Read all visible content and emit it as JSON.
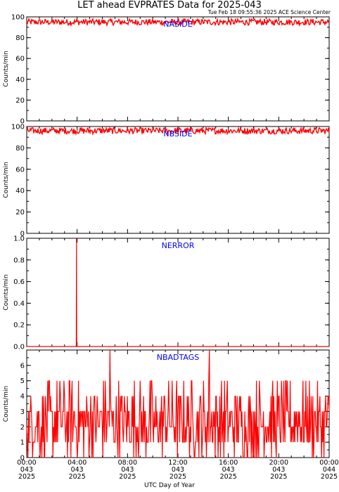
{
  "page": {
    "title": "LET ahead EVPRATES Data for 2025-043",
    "subtitle": "Tue Feb 18 09:55:36 2025 ACE Science Center",
    "xlabel": "UTC Day of Year"
  },
  "colors": {
    "series": "#ff0000",
    "label": "#0000ff",
    "axis": "#000000"
  },
  "chart_data": [
    {
      "type": "line",
      "name": "NASIDE",
      "ylabel": "Counts/min",
      "ylim": [
        0,
        100
      ],
      "yticks": [
        0,
        20,
        40,
        60,
        80,
        100
      ],
      "xlim": [
        0,
        24
      ],
      "series": [
        {
          "name": "NASIDE",
          "pattern": "noise",
          "mean": 95,
          "spread": 3,
          "x": [
            0,
            4,
            8,
            12,
            16,
            20,
            24
          ],
          "values": [
            95,
            96,
            95,
            95,
            96,
            95,
            95
          ]
        }
      ]
    },
    {
      "type": "line",
      "name": "NBSIDE",
      "ylabel": "Counts/min",
      "ylim": [
        0,
        100
      ],
      "yticks": [
        0,
        20,
        40,
        60,
        80,
        100
      ],
      "xlim": [
        0,
        24
      ],
      "series": [
        {
          "name": "NBSIDE",
          "pattern": "noise",
          "mean": 96,
          "spread": 3,
          "x": [
            0,
            4,
            8,
            12,
            16,
            20,
            24
          ],
          "values": [
            96,
            96,
            95,
            96,
            96,
            96,
            96
          ]
        }
      ]
    },
    {
      "type": "line",
      "name": "NERROR",
      "ylabel": "Counts/min",
      "ylim": [
        0,
        1.0
      ],
      "yticks": [
        0.0,
        0.2,
        0.4,
        0.6,
        0.8,
        1.0
      ],
      "xlim": [
        0,
        24
      ],
      "series": [
        {
          "name": "NERROR",
          "pattern": "spikes",
          "baseline": 0,
          "spikes": [
            {
              "x": 3.95,
              "value": 1
            }
          ]
        }
      ]
    },
    {
      "type": "line",
      "name": "NBADTAGS",
      "ylabel": "Counts/min",
      "ylim": [
        0,
        7
      ],
      "yticks": [
        0,
        1,
        2,
        3,
        4,
        5,
        6
      ],
      "xlim": [
        0,
        24
      ],
      "series": [
        {
          "name": "NBADTAGS",
          "pattern": "counts",
          "range": [
            0,
            5
          ],
          "peaks": [
            {
              "x": 6.6,
              "value": 7
            },
            {
              "x": 14.5,
              "value": 7
            }
          ]
        }
      ]
    }
  ],
  "xaxis": {
    "ticks": [
      {
        "hour": 0,
        "time": "00:00",
        "doy": "043",
        "year": "2025"
      },
      {
        "hour": 4,
        "time": "04:00",
        "doy": "043",
        "year": "2025"
      },
      {
        "hour": 8,
        "time": "08:00",
        "doy": "043",
        "year": "2025"
      },
      {
        "hour": 12,
        "time": "12:00",
        "doy": "043",
        "year": "2025"
      },
      {
        "hour": 16,
        "time": "16:00",
        "doy": "043",
        "year": "2025"
      },
      {
        "hour": 20,
        "time": "20:00",
        "doy": "043",
        "year": "2025"
      },
      {
        "hour": 24,
        "time": "00:00",
        "doy": "044",
        "year": "2025"
      }
    ]
  }
}
